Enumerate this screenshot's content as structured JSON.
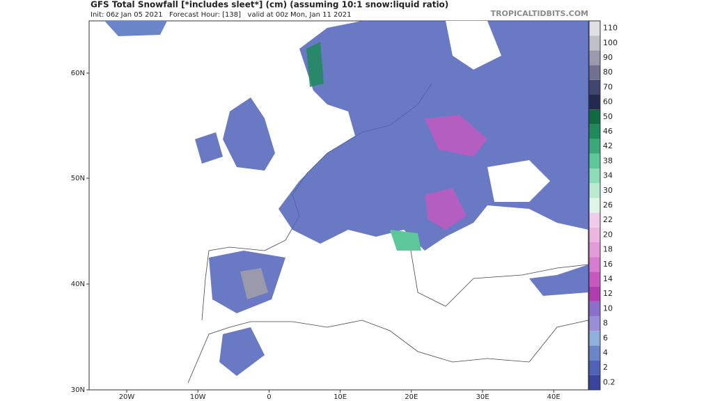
{
  "header": {
    "title": "GFS Total Snowfall [*includes sleet*] (cm) (assuming 10:1 snow:liquid ratio)",
    "subtitle": "Init: 06z Jan 05 2021   Forecast Hour: [138]   valid at 00z Mon, Jan 11 2021",
    "watermark": "TROPICALTIDBITS.COM"
  },
  "map": {
    "lat_labels": [
      "60N",
      "50N",
      "40N",
      "30N"
    ],
    "lon_labels": [
      "20W",
      "10W",
      "0",
      "10E",
      "20E",
      "30E",
      "40E"
    ]
  },
  "legend": {
    "levels": [
      {
        "label": "0.2",
        "color": "#3a45a0"
      },
      {
        "label": "2",
        "color": "#4f62b8"
      },
      {
        "label": "4",
        "color": "#6b86c8"
      },
      {
        "label": "6",
        "color": "#8fb0dc"
      },
      {
        "label": "8",
        "color": "#9b8ed8"
      },
      {
        "label": "10",
        "color": "#8a70cc"
      },
      {
        "label": "12",
        "color": "#b03cb0"
      },
      {
        "label": "14",
        "color": "#c858c0"
      },
      {
        "label": "16",
        "color": "#d77ccf"
      },
      {
        "label": "18",
        "color": "#e39ad8"
      },
      {
        "label": "20",
        "color": "#ebb6e0"
      },
      {
        "label": "22",
        "color": "#f1ccea"
      },
      {
        "label": "26",
        "color": "#dff5e8"
      },
      {
        "label": "30",
        "color": "#b8ead0"
      },
      {
        "label": "34",
        "color": "#8edcb8"
      },
      {
        "label": "38",
        "color": "#5ec79a"
      },
      {
        "label": "42",
        "color": "#3aa878"
      },
      {
        "label": "46",
        "color": "#1f8a5a"
      },
      {
        "label": "50",
        "color": "#0f6a40"
      },
      {
        "label": "60",
        "color": "#222a50"
      },
      {
        "label": "70",
        "color": "#404670"
      },
      {
        "label": "80",
        "color": "#707090"
      },
      {
        "label": "90",
        "color": "#9a9aac"
      },
      {
        "label": "100",
        "color": "#c0c0c8"
      },
      {
        "label": "110",
        "color": "#e0e0e4"
      }
    ]
  }
}
